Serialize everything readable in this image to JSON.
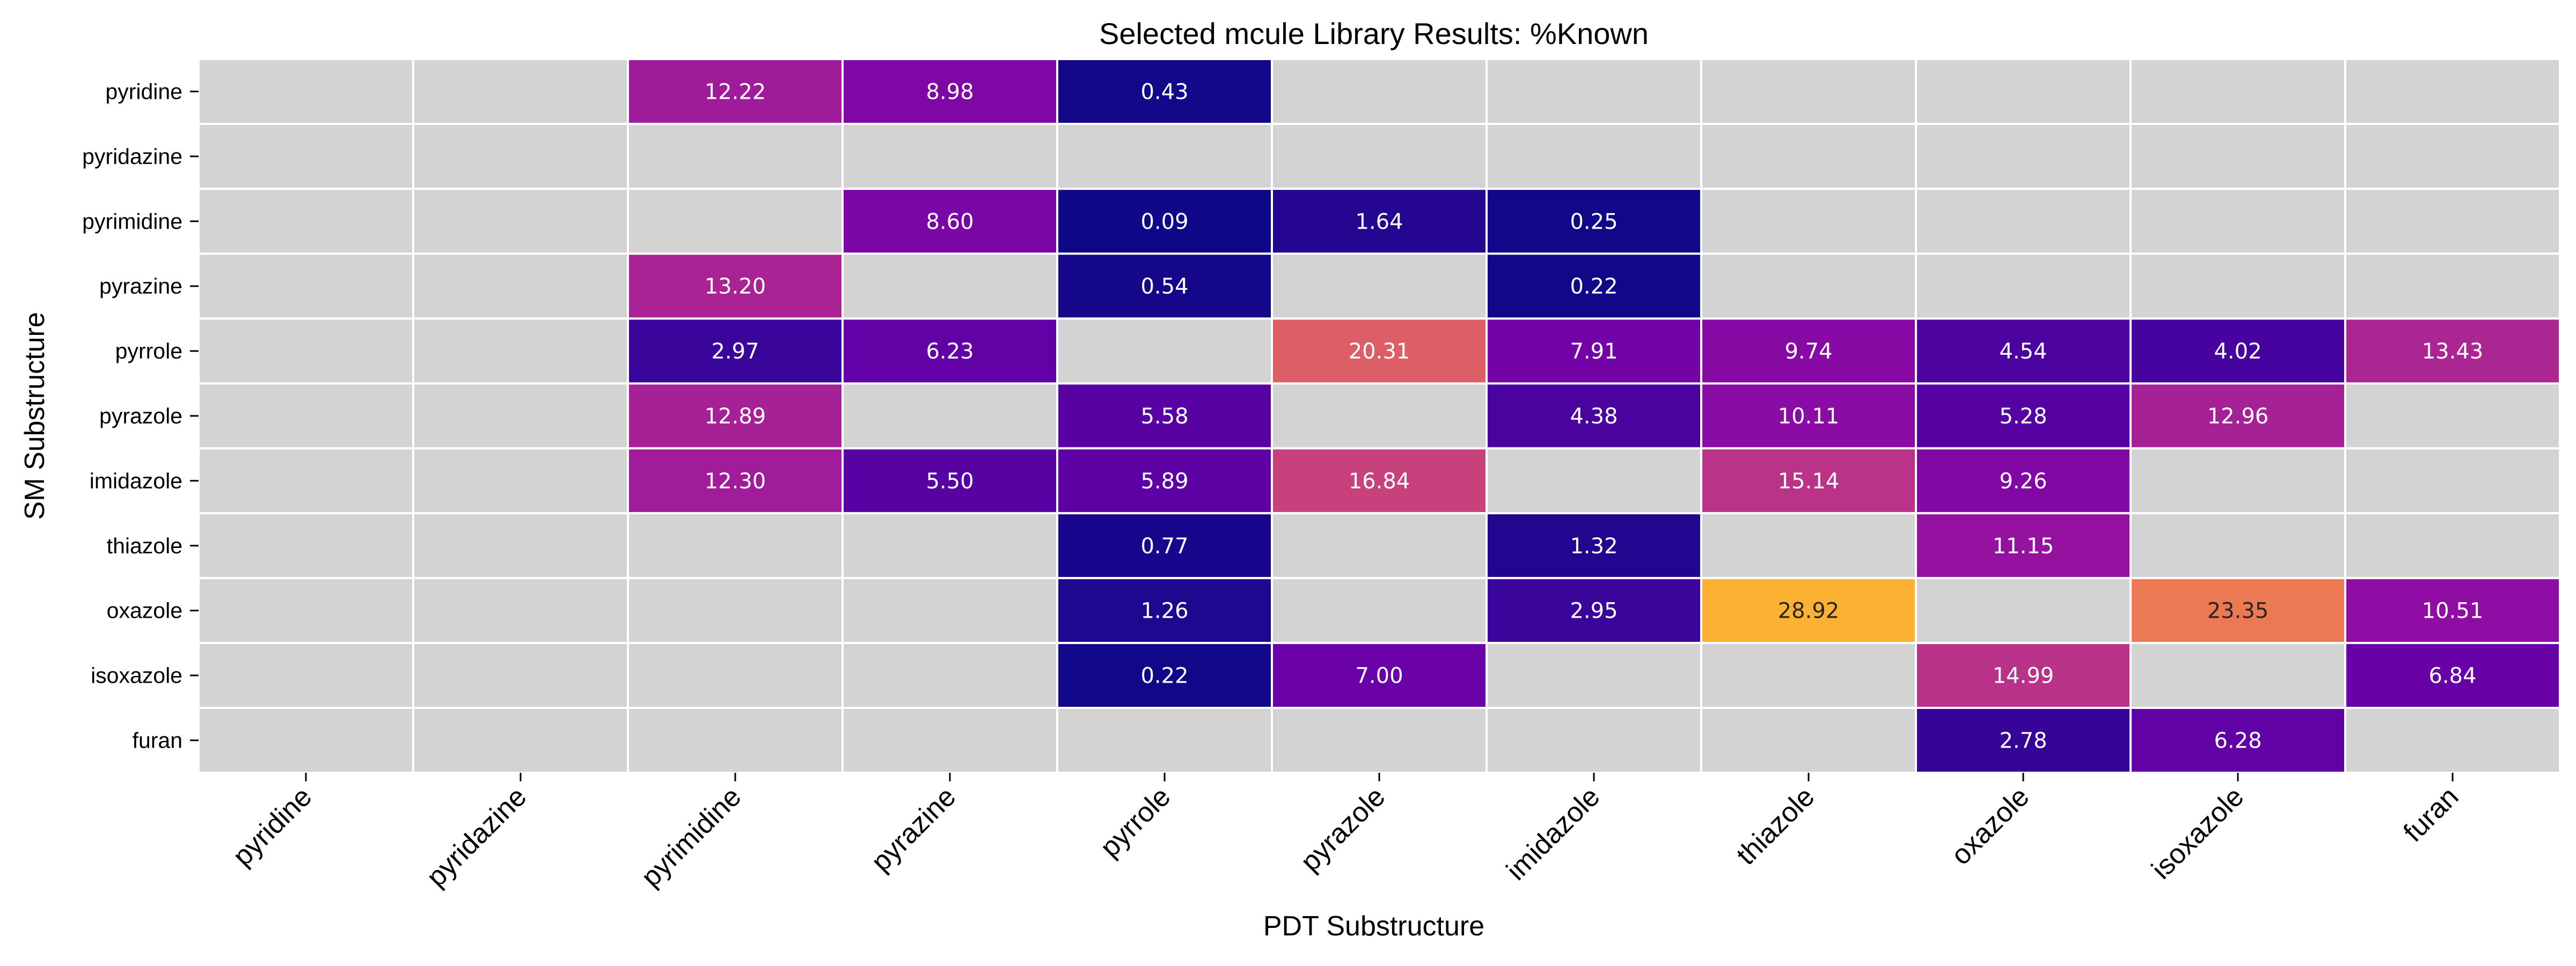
{
  "chart_data": {
    "type": "heatmap",
    "title": "Selected mcule Library Results: %Known",
    "xlabel": "PDT Substructure",
    "ylabel": "SM Substructure",
    "x_categories": [
      "pyridine",
      "pyridazine",
      "pyrimidine",
      "pyrazine",
      "pyrrole",
      "pyrazole",
      "imidazole",
      "thiazole",
      "oxazole",
      "isoxazole",
      "furan"
    ],
    "y_categories": [
      "pyridine",
      "pyridazine",
      "pyrimidine",
      "pyrazine",
      "pyrrole",
      "pyrazole",
      "imidazole",
      "thiazole",
      "oxazole",
      "isoxazole",
      "furan"
    ],
    "values": [
      [
        null,
        null,
        12.22,
        8.98,
        0.43,
        null,
        null,
        null,
        null,
        null,
        null
      ],
      [
        null,
        null,
        null,
        null,
        null,
        null,
        null,
        null,
        null,
        null,
        null
      ],
      [
        null,
        null,
        null,
        8.6,
        0.09,
        1.64,
        0.25,
        null,
        null,
        null,
        null
      ],
      [
        null,
        null,
        13.2,
        null,
        0.54,
        null,
        0.22,
        null,
        null,
        null,
        null
      ],
      [
        null,
        null,
        2.97,
        6.23,
        null,
        20.31,
        7.91,
        9.74,
        4.54,
        4.02,
        13.43
      ],
      [
        null,
        null,
        12.89,
        null,
        5.58,
        null,
        4.38,
        10.11,
        5.28,
        12.96,
        null
      ],
      [
        null,
        null,
        12.3,
        5.5,
        5.89,
        16.84,
        null,
        15.14,
        9.26,
        null,
        null
      ],
      [
        null,
        null,
        null,
        null,
        0.77,
        null,
        1.32,
        null,
        11.15,
        null,
        null
      ],
      [
        null,
        null,
        null,
        null,
        1.26,
        null,
        2.95,
        28.92,
        null,
        23.35,
        10.51
      ],
      [
        null,
        null,
        null,
        null,
        0.22,
        7.0,
        null,
        null,
        14.99,
        null,
        6.84
      ],
      [
        null,
        null,
        null,
        null,
        null,
        null,
        null,
        null,
        2.78,
        6.28,
        null
      ]
    ],
    "value_format": "2 decimals",
    "colormap": "plasma",
    "color_range": [
      0,
      35
    ],
    "missing_color": "#d3d3d3",
    "cell_border_color": "#ffffff",
    "colorbar": false,
    "grid": false
  }
}
